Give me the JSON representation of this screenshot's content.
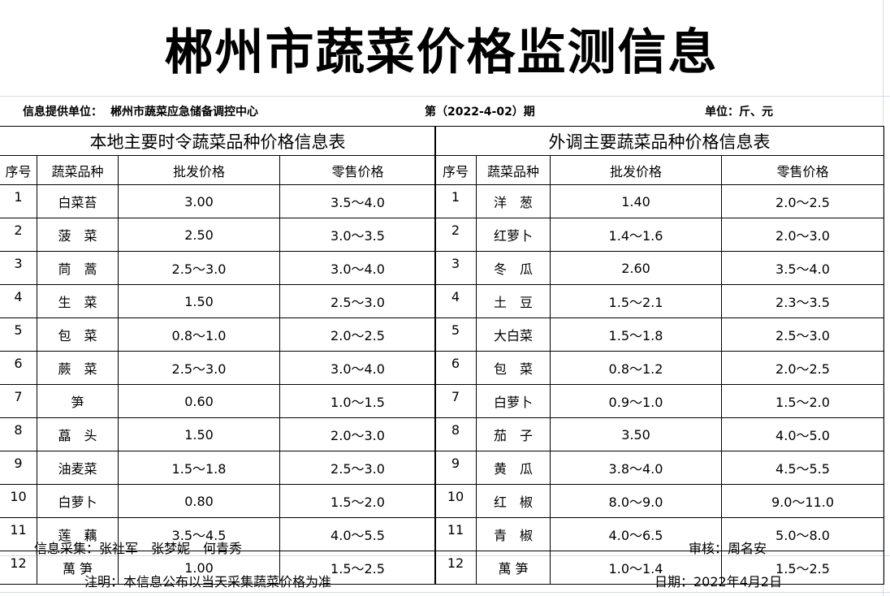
{
  "title": "郴州市蔬菜价格监测信息",
  "info": {
    "provider_label": "信息提供单位：",
    "provider": "郴州市蔬菜应急储备调控中心",
    "issue": "第（2022-4-02）期",
    "unit": "单位：斤、元"
  },
  "columns": [
    "序号",
    "蔬菜品种",
    "批发价格",
    "零售价格"
  ],
  "local": {
    "heading": "本地主要时令蔬菜品种价格信息表",
    "rows": [
      [
        "1",
        "白菜苔",
        "3.00",
        "3.5～4.0"
      ],
      [
        "2",
        "菠　菜",
        "2.50",
        "3.0～3.5"
      ],
      [
        "3",
        "茼　蒿",
        "2.5～3.0",
        "3.0～4.0"
      ],
      [
        "4",
        "生　菜",
        "1.50",
        "2.5～3.0"
      ],
      [
        "5",
        "包　菜",
        "0.8～1.0",
        "2.0～2.5"
      ],
      [
        "6",
        "蕨　菜",
        "2.5～3.0",
        "3.0～4.0"
      ],
      [
        "7",
        "笋",
        "0.60",
        "1.0～1.5"
      ],
      [
        "8",
        "藠　头",
        "1.50",
        "2.0～3.0"
      ],
      [
        "9",
        "油麦菜",
        "1.5～1.8",
        "2.5～3.0"
      ],
      [
        "10",
        "白萝卜",
        "0.80",
        "1.5～2.0"
      ],
      [
        "11",
        "莲　藕",
        "3.5～4.5",
        "4.0～5.5"
      ],
      [
        "12",
        "萬 笋",
        "1.00",
        "1.5～2.5"
      ]
    ]
  },
  "external": {
    "heading": "外调主要蔬菜品种价格信息表",
    "rows": [
      [
        "1",
        "洋　葱",
        "1.40",
        "2.0～2.5"
      ],
      [
        "2",
        "红萝卜",
        "1.4～1.6",
        "2.0～3.0"
      ],
      [
        "3",
        "冬　瓜",
        "2.60",
        "3.5～4.0"
      ],
      [
        "4",
        "土　豆",
        "1.5～2.1",
        "2.3～3.5"
      ],
      [
        "5",
        "大白菜",
        "1.5～1.8",
        "2.5～3.0"
      ],
      [
        "6",
        "包　菜",
        "0.8～1.2",
        "2.0～2.5"
      ],
      [
        "7",
        "白萝卜",
        "0.9～1.0",
        "1.5～2.0"
      ],
      [
        "8",
        "茄　子",
        "3.50",
        "4.0～5.0"
      ],
      [
        "9",
        "黄　瓜",
        "3.8～4.0",
        "4.5～5.5"
      ],
      [
        "10",
        "红　椒",
        "8.0～9.0",
        "9.0～11.0"
      ],
      [
        "11",
        "青　椒",
        "4.0～6.5",
        "5.0～8.0"
      ],
      [
        "12",
        "萬 笋",
        "1.0～1.4",
        "1.5～2.5"
      ]
    ]
  },
  "footer": {
    "collectors": "信息采集：张社军　张梦妮　何青秀",
    "reviewer": "审核：周名安",
    "note": "注明：本信息公布以当天采集蔬菜价格为准",
    "date": "日期：2022年4月2日"
  }
}
